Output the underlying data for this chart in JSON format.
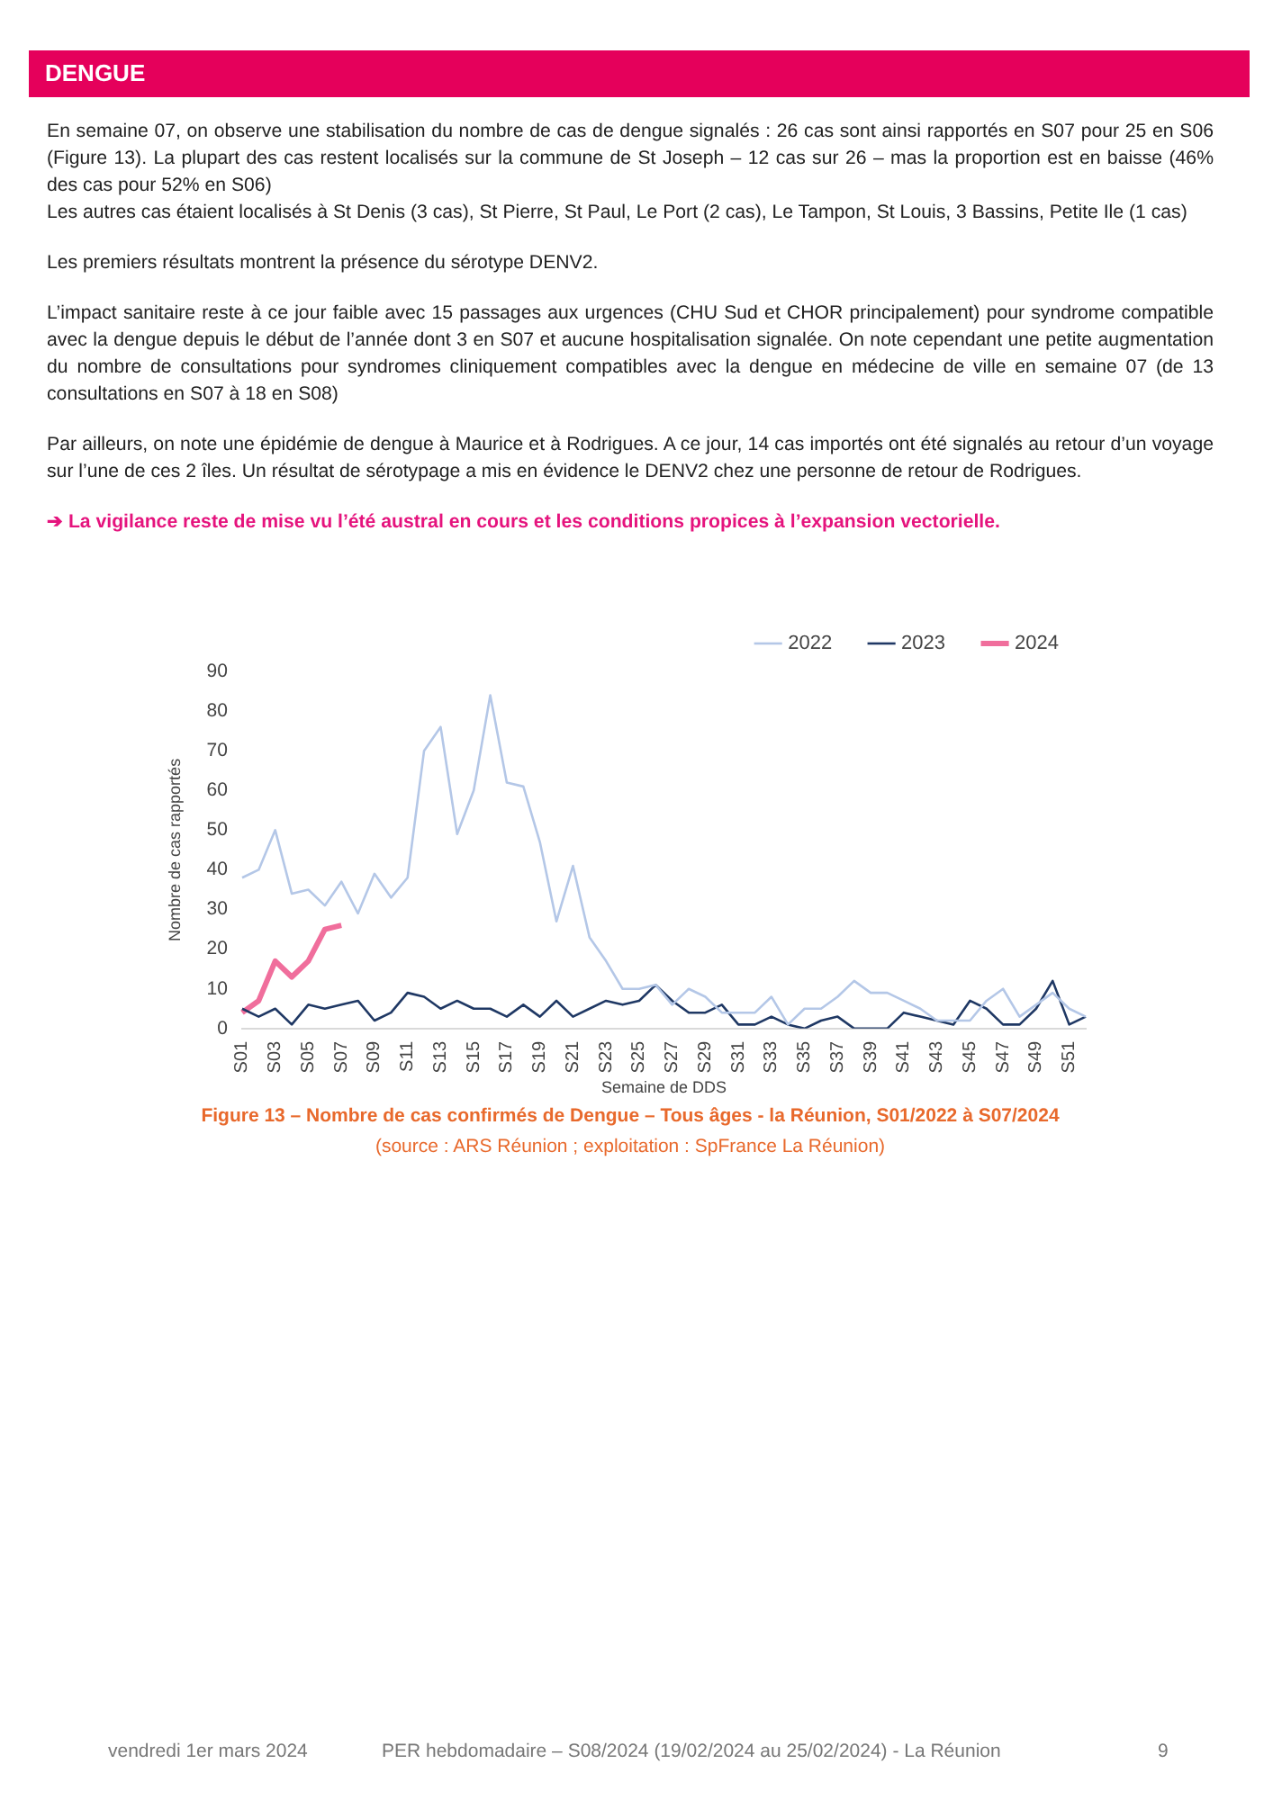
{
  "chart_data": {
    "type": "line",
    "subtitle": "DENGUE",
    "title": "Figure 13 – Nombre de cas confirmés de Dengue – Tous âges - la Réunion, S01/2022 à S07/2024",
    "xlabel": "Semaine de DDS",
    "ylabel": "Nombre de cas rapportés",
    "categories": [
      "S01",
      null,
      "S03",
      null,
      "S05",
      null,
      "S07",
      null,
      "S09",
      null,
      "S11",
      null,
      "S13",
      null,
      "S15",
      null,
      "S17",
      null,
      "S19",
      null,
      "S21",
      null,
      "S23",
      null,
      "S25",
      null,
      "S27",
      null,
      "S29",
      null,
      "S31",
      null,
      "S33",
      null,
      "S35",
      null,
      "S37",
      null,
      "S39",
      null,
      "S41",
      null,
      "S43",
      null,
      "S45",
      null,
      "S47",
      null,
      "S49",
      null,
      "S51",
      null
    ],
    "series": [
      {
        "name": "2022",
        "color": "#b4c7e7",
        "values": [
          38,
          40,
          50,
          34,
          35,
          31,
          37,
          29,
          39,
          33,
          38,
          70,
          76,
          49,
          60,
          84,
          62,
          61,
          47,
          27,
          41,
          23,
          17,
          10,
          10,
          11,
          6,
          10,
          8,
          4,
          4,
          4,
          8,
          1,
          5,
          5,
          8,
          12,
          9,
          9,
          7,
          5,
          2,
          2,
          2,
          7,
          10,
          3,
          6,
          9,
          5,
          3
        ]
      },
      {
        "name": "2023",
        "color": "#1f3864",
        "values": [
          5,
          3,
          5,
          1,
          6,
          5,
          6,
          7,
          2,
          4,
          9,
          8,
          5,
          7,
          5,
          5,
          3,
          6,
          3,
          7,
          3,
          5,
          7,
          6,
          7,
          11,
          7,
          4,
          4,
          6,
          1,
          1,
          3,
          1,
          0,
          2,
          3,
          0,
          0,
          0,
          4,
          3,
          2,
          1,
          7,
          5,
          1,
          1,
          5,
          12,
          1,
          3
        ]
      },
      {
        "name": "2024",
        "color": "#f06e9c",
        "values": [
          4,
          7,
          17,
          13,
          17,
          25,
          26,
          null,
          null,
          null,
          null,
          null,
          null,
          null,
          null,
          null,
          null,
          null,
          null,
          null,
          null,
          null,
          null,
          null,
          null,
          null,
          null,
          null,
          null,
          null,
          null,
          null,
          null,
          null,
          null,
          null,
          null,
          null,
          null,
          null,
          null,
          null,
          null,
          null,
          null,
          null,
          null,
          null,
          null,
          null,
          null,
          null
        ]
      }
    ],
    "ylim": [
      0,
      90
    ],
    "yticks": [
      0,
      10,
      20,
      30,
      40,
      50,
      60,
      70,
      80,
      90
    ],
    "grid": false,
    "legend": "top right",
    "marker": "none",
    "line_style": "solid",
    "annotations": [
      "En semaine 07, on observe une stabilisation du nombre de cas de dengue signalés : 26 cas sont ainsi rapportés en S07 pour 25 en S06 (Figure 13). La plupart des cas restent localisés sur la commune de St Joseph – 12 cas sur 26 – mas la proportion est en baisse (46% des cas pour 52% en S06)",
      "Les autres cas étaient localisés à St Denis (3 cas), St Pierre, St Paul, Le Port (2 cas), Le Tampon, St Louis, 3 Bassins, Petite Ile (1 cas)",
      "Les premiers résultats montrent la présence du sérotype DENV2.",
      "L’impact sanitaire reste à ce jour faible avec 15 passages aux urgences (CHU Sud et CHOR principalement) pour syndrome compatible avec la dengue depuis le début de l’année dont 3 en S07 et aucune hospitalisation signalée. On note cependant une petite augmentation du nombre de consultations pour syndromes cliniquement compatibles avec la dengue en médecine de ville en semaine 07 (de 13 consultations en S07 à 18 en S08)",
      "Par ailleurs, on note une épidémie de dengue à Maurice et à Rodrigues. A ce jour, 14 cas importés ont été signalés au retour d’un voyage sur l’une de ces 2 îles. Un résultat de sérotypage a mis en évidence le DENV2 chez une personne de retour de Rodrigues.",
      "➔ La vigilance reste de mise vu l’été austral en cours et les conditions propices à l’expansion vectorielle.",
      "(source : ARS Réunion ; exploitation : SpFrance La Réunion)",
      "vendredi 1er mars 2024",
      "PER hebdomadaire – S08/2024 (19/02/2024 au 25/02/2024) - La Réunion",
      "9"
    ]
  }
}
